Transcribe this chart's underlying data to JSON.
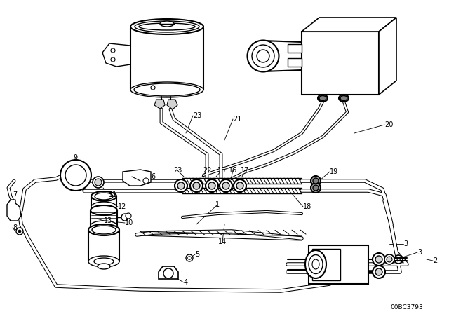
{
  "background_color": "#ffffff",
  "line_color": "#000000",
  "figure_width": 6.4,
  "figure_height": 4.48,
  "dpi": 100,
  "diagram_code": "00BC3793",
  "label_fs": 7
}
